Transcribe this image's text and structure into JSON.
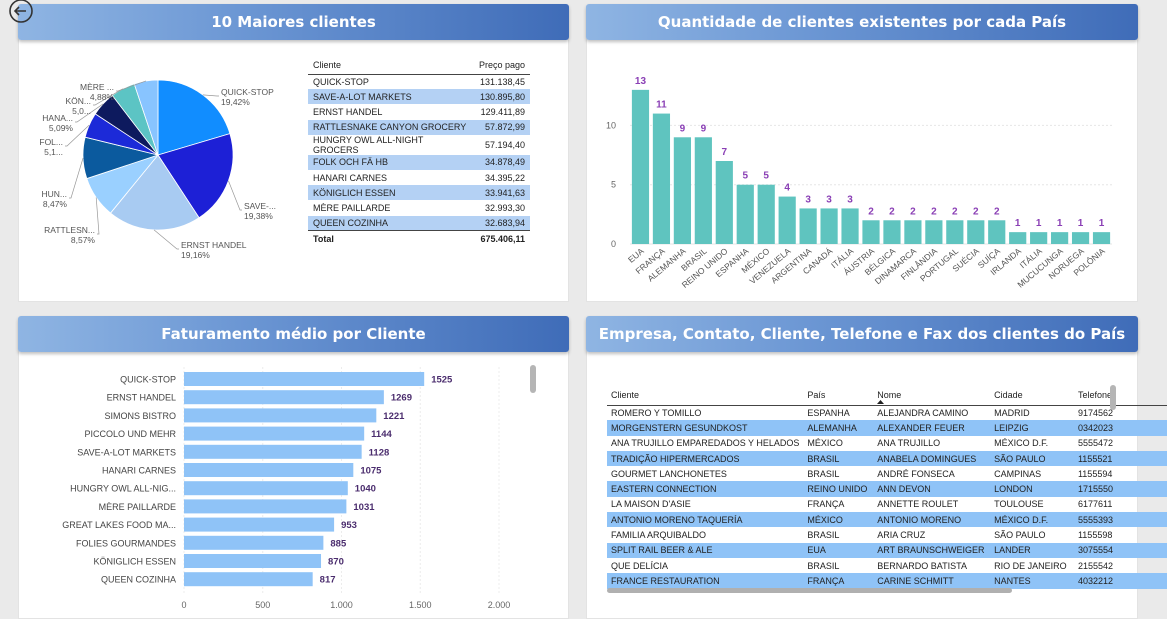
{
  "panels": {
    "top_clients": {
      "title": "10 Maiores clientes",
      "table": {
        "headers": [
          "Cliente",
          "Preço pago"
        ],
        "rows": [
          [
            "QUICK-STOP",
            "131.138,45"
          ],
          [
            "SAVE-A-LOT MARKETS",
            "130.895,80"
          ],
          [
            "ERNST HANDEL",
            "129.411,89"
          ],
          [
            "RATTLESNAKE CANYON GROCERY",
            "57.872,99"
          ],
          [
            "HUNGRY OWL ALL-NIGHT GROCERS",
            "57.194,40"
          ],
          [
            "FOLK OCH FÄ HB",
            "34.878,49"
          ],
          [
            "HANARI CARNES",
            "34.395,22"
          ],
          [
            "KÖNIGLICH ESSEN",
            "33.941,63"
          ],
          [
            "MÈRE PAILLARDE",
            "32.993,30"
          ],
          [
            "QUEEN COZINHA",
            "32.683,94"
          ]
        ],
        "total_label": "Total",
        "total_value": "675.406,11"
      }
    },
    "by_country": {
      "title": "Quantidade de clientes existentes por cada País"
    },
    "avg_billing": {
      "title": "Faturamento médio por Cliente"
    },
    "contacts": {
      "title": "Empresa, Contato, Cliente, Telefone e Fax dos clientes do País",
      "headers": [
        "Cliente",
        "País",
        "Nome",
        "Cidade",
        "Telefone"
      ],
      "rows": [
        [
          "ROMERO Y TOMILLO",
          "ESPANHA",
          "ALEJANDRA CAMINO",
          "MADRID",
          "9174562"
        ],
        [
          "MORGENSTERN GESUNDKOST",
          "ALEMANHA",
          "ALEXANDER FEUER",
          "LEIPZIG",
          "0342023"
        ],
        [
          "ANA TRUJILLO EMPAREDADOS Y HELADOS",
          "MÉXICO",
          "ANA TRUJILLO",
          "MÉXICO D.F.",
          "5555472"
        ],
        [
          "TRADIÇÃO HIPERMERCADOS",
          "BRASIL",
          "ANABELA DOMINGUES",
          "SÃO PAULO",
          "1155521"
        ],
        [
          "GOURMET LANCHONETES",
          "BRASIL",
          "ANDRÉ FONSECA",
          "CAMPINAS",
          "1155594"
        ],
        [
          "EASTERN CONNECTION",
          "REINO UNIDO",
          "ANN DEVON",
          "LONDON",
          "1715550"
        ],
        [
          "LA MAISON D'ASIE",
          "FRANÇA",
          "ANNETTE ROULET",
          "TOULOUSE",
          "6177611"
        ],
        [
          "ANTONIO MORENO TAQUERÍA",
          "MÉXICO",
          "ANTONIO MORENO",
          "MÉXICO D.F.",
          "5555393"
        ],
        [
          "FAMILIA ARQUIBALDO",
          "BRASIL",
          "ARIA CRUZ",
          "SÃO PAULO",
          "1155598"
        ],
        [
          "SPLIT RAIL BEER & ALE",
          "EUA",
          "ART BRAUNSCHWEIGER",
          "LANDER",
          "3075554"
        ],
        [
          "QUE DELÍCIA",
          "BRASIL",
          "BERNARDO BATISTA",
          "RIO DE JANEIRO",
          "2155542"
        ],
        [
          "FRANCE RESTAURATION",
          "FRANÇA",
          "CARINE SCHMITT",
          "NANTES",
          "4032212"
        ]
      ]
    }
  },
  "chart_data": [
    {
      "type": "pie",
      "labels": [
        "QUICK-STOP",
        "SAVE-...",
        "ERNST HANDEL",
        "RATTLESN...",
        "HUN...",
        "FOL...",
        "HANA...",
        "KÖN...",
        "MÈRE ..."
      ],
      "pct_labels": [
        "19,42%",
        "19,38%",
        "19,16%",
        "8,57%",
        "8,47%",
        "5,1...",
        "5,09%",
        "5,0...",
        "4,88%"
      ],
      "values": [
        19.42,
        19.38,
        19.16,
        8.57,
        8.47,
        5.16,
        5.09,
        5.03,
        4.88
      ],
      "colors": [
        "#118dff",
        "#1d20d6",
        "#a8cbf2",
        "#9ad0ff",
        "#0b5a9e",
        "#1c2ad8",
        "#0d1a5e",
        "#5cc4c4",
        "#88c4ff"
      ]
    },
    {
      "type": "bar",
      "categories": [
        "EUA",
        "FRANÇA",
        "ALEMANHA",
        "BRASIL",
        "REINO UNIDO",
        "ESPANHA",
        "MÉXICO",
        "VENEZUELA",
        "ARGENTINA",
        "CANADÁ",
        "ITÁLIA",
        "ÁUSTRIA",
        "BÉLGICA",
        "DINAMARCA",
        "FINLÂNDIA",
        "PORTUGAL",
        "SUÉCIA",
        "SUÍÇA",
        "IRLANDA",
        "ITÁLIA",
        "MUCUCUNGA",
        "NORUEGA",
        "POLÔNIA"
      ],
      "values": [
        13,
        11,
        9,
        9,
        7,
        5,
        5,
        4,
        3,
        3,
        3,
        2,
        2,
        2,
        2,
        2,
        2,
        2,
        1,
        1,
        1,
        1,
        1
      ],
      "yticks": [
        0,
        5,
        10
      ],
      "ylim": [
        0,
        14
      ],
      "color": "#5fc4bf",
      "label_color": "#8a3fb5"
    },
    {
      "type": "bar",
      "orientation": "horizontal",
      "categories": [
        "QUICK-STOP",
        "ERNST HANDEL",
        "SIMONS BISTRO",
        "PICCOLO UND MEHR",
        "SAVE-A-LOT MARKETS",
        "HANARI CARNES",
        "HUNGRY OWL ALL-NIG...",
        "MÈRE PAILLARDE",
        "GREAT LAKES FOOD MA...",
        "FOLIES GOURMANDES",
        "KÖNIGLICH ESSEN",
        "QUEEN COZINHA"
      ],
      "values": [
        1525,
        1269,
        1221,
        1144,
        1128,
        1075,
        1040,
        1031,
        953,
        885,
        870,
        817
      ],
      "xticks": [
        "0",
        "500",
        "1.000",
        "1.500",
        "2.000"
      ],
      "xtick_values": [
        0,
        500,
        1000,
        1500,
        2000
      ],
      "xlim": [
        0,
        2000
      ],
      "color": "#8fc3f7",
      "label_color": "#4b2d6e"
    }
  ]
}
